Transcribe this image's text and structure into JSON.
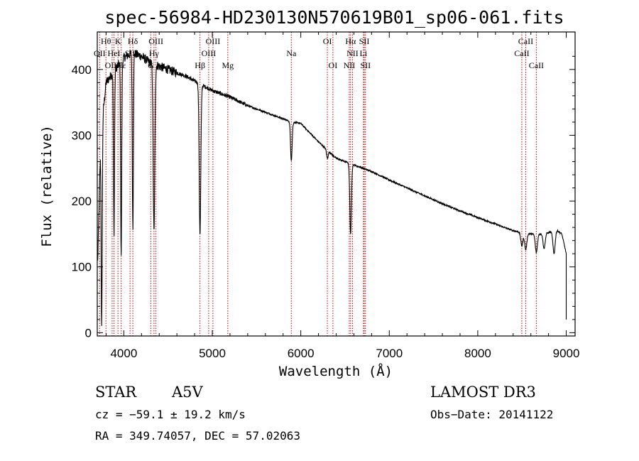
{
  "chart_data": {
    "type": "line",
    "title": "spec-56984-HD230130N570619B01_sp06-061.fits",
    "xlabel": "Wavelength (Å)",
    "ylabel": "Flux (relative)",
    "xlim": [
      3700,
      9100
    ],
    "ylim": [
      -5,
      457
    ],
    "x_ticks": [
      4000,
      5000,
      6000,
      7000,
      8000,
      9000
    ],
    "x_tick_labels": [
      "4000",
      "5000",
      "6000",
      "7000",
      "8000",
      "9000"
    ],
    "y_ticks": [
      0,
      100,
      200,
      300,
      400
    ],
    "y_tick_labels": [
      "0",
      "100",
      "200",
      "300",
      "400"
    ],
    "continuum": {
      "x": [
        3700,
        3740,
        3800,
        3900,
        4000,
        4100,
        4200,
        4300,
        4400,
        4500,
        4700,
        4900,
        5000,
        5200,
        5400,
        5600,
        5800,
        5900,
        6000,
        6200,
        6400,
        6600,
        6800,
        7000,
        7200,
        7400,
        7600,
        7800,
        8000,
        8200,
        8400,
        8500,
        8600,
        8700,
        8800,
        8900,
        8950,
        9000
      ],
      "y": [
        80,
        300,
        380,
        400,
        418,
        425,
        420,
        410,
        405,
        400,
        390,
        375,
        368,
        358,
        345,
        335,
        325,
        320,
        318,
        290,
        265,
        255,
        245,
        232,
        220,
        208,
        196,
        185,
        175,
        165,
        155,
        152,
        150,
        150,
        152,
        155,
        150,
        120
      ]
    },
    "absorption_features": [
      {
        "name": "Balmer jump / H series",
        "x": 3750,
        "y_min": 5
      },
      {
        "name": "H8",
        "x": 3889,
        "y_min": 150
      },
      {
        "name": "H epsilon",
        "x": 3970,
        "y_min": 118
      },
      {
        "name": "H delta",
        "x": 4102,
        "y_min": 157
      },
      {
        "name": "H gamma",
        "x": 4341,
        "y_min": 152
      },
      {
        "name": "H beta",
        "x": 4861,
        "y_min": 150
      },
      {
        "name": "Na D",
        "x": 5893,
        "y_min": 262
      },
      {
        "name": "O I",
        "x": 6300,
        "y_min": 265
      },
      {
        "name": "H alpha",
        "x": 6563,
        "y_min": 150
      },
      {
        "name": "Ca II 8498",
        "x": 8498,
        "y_min": 132
      },
      {
        "name": "Ca II 8542",
        "x": 8542,
        "y_min": 126
      },
      {
        "name": "Ca II 8662",
        "x": 8662,
        "y_min": 122
      },
      {
        "name": "Paschen",
        "x": 8750,
        "y_min": 128
      },
      {
        "name": "Paschen",
        "x": 8862,
        "y_min": 120
      }
    ],
    "spectral_lines": [
      {
        "label": "Hθ",
        "x": 3798,
        "row": 1
      },
      {
        "label": "K",
        "x": 3934,
        "row": 1
      },
      {
        "label": "Hδ",
        "x": 4102,
        "row": 1
      },
      {
        "label": "OIII",
        "x": 4363,
        "row": 1
      },
      {
        "label": "OIII",
        "x": 5007,
        "row": 1
      },
      {
        "label": "OI",
        "x": 6300,
        "row": 1
      },
      {
        "label": "Hα",
        "x": 6563,
        "row": 1
      },
      {
        "label": "SII",
        "x": 6717,
        "row": 1
      },
      {
        "label": "CaII",
        "x": 8542,
        "row": 1
      },
      {
        "label": "OII",
        "x": 3727,
        "row": 2
      },
      {
        "label": "HeI",
        "x": 3889,
        "row": 2
      },
      {
        "label": "SII",
        "x": 4070,
        "row": 2
      },
      {
        "label": "Hγ",
        "x": 4341,
        "row": 2
      },
      {
        "label": "OIII",
        "x": 4959,
        "row": 2
      },
      {
        "label": "Na",
        "x": 5893,
        "row": 2
      },
      {
        "label": "NII",
        "x": 6584,
        "row": 2
      },
      {
        "label": "Li",
        "x": 6708,
        "row": 2
      },
      {
        "label": "CaII",
        "x": 8498,
        "row": 2
      },
      {
        "label": "OIII",
        "x": 3868,
        "row": 3
      },
      {
        "label": "Hε",
        "x": 3970,
        "row": 3
      },
      {
        "label": "G",
        "x": 4305,
        "row": 3
      },
      {
        "label": "Hβ",
        "x": 4861,
        "row": 3
      },
      {
        "label": "Mg",
        "x": 5175,
        "row": 3
      },
      {
        "label": "OI",
        "x": 6363,
        "row": 3
      },
      {
        "label": "NII",
        "x": 6548,
        "row": 3
      },
      {
        "label": "SII",
        "x": 6731,
        "row": 3
      },
      {
        "label": "CaII",
        "x": 8662,
        "row": 3
      }
    ]
  },
  "info": {
    "object_type": "STAR",
    "spectral_class": "A5V",
    "survey": "LAMOST DR3",
    "cz": "cz = −59.1 ± 19.2 km/s",
    "obs_date": "Obs−Date: 20141122",
    "coords": "RA = 349.74057, DEC =  57.02063"
  },
  "colors": {
    "spectrum": "#000000",
    "line_markers": "#c00000",
    "background": "#ffffff"
  }
}
